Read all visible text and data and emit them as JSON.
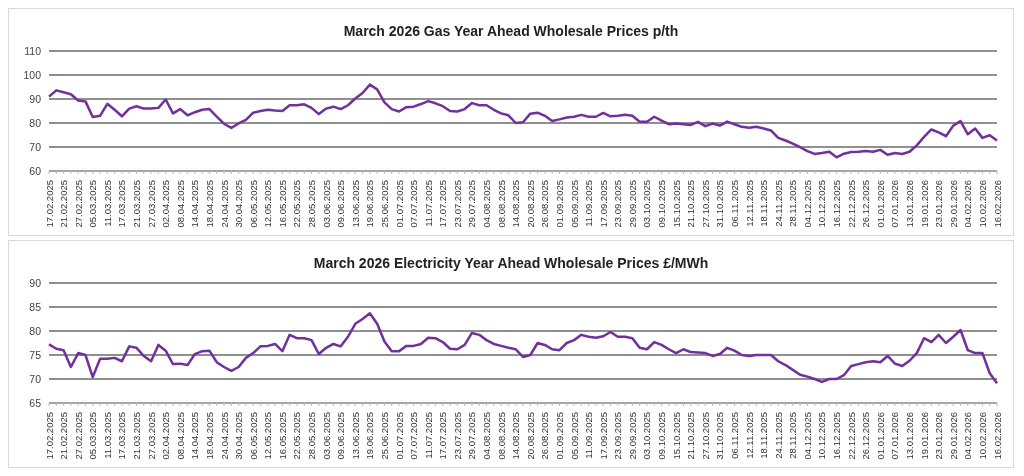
{
  "chart_data": [
    {
      "type": "line",
      "title": "March 2026 Gas Year Ahead Wholesale Prices p/th",
      "categories": [
        "17.02.2025",
        null,
        "21.02.2025",
        null,
        "27.02.2025",
        null,
        "05.03.2025",
        null,
        "11.03.2025",
        null,
        "17.03.2025",
        null,
        "21.03.2025",
        null,
        "27.03.2025",
        null,
        "02.04.2025",
        null,
        "08.04.2025",
        null,
        "14.04.2025",
        null,
        "18.04.2025",
        null,
        "24.04.2025",
        null,
        "30.04.2025",
        null,
        "06.05.2025",
        null,
        "12.05.2025",
        null,
        "16.05.2025",
        null,
        "22.05.2025",
        null,
        "28.05.2025",
        null,
        "03.06.2025",
        null,
        "09.06.2025",
        null,
        "13.06.2025",
        null,
        "19.06.2025",
        null,
        "25.06.2025",
        null,
        "01.07.2025",
        null,
        "07.07.2025",
        null,
        "11.07.2025",
        null,
        "17.07.2025",
        null,
        "23.07.2025",
        null,
        "29.07.2025",
        null,
        "04.08.2025",
        null,
        "08.08.2025",
        null,
        "14.08.2025",
        null,
        "20.08.2025",
        null,
        "26.08.2025",
        null,
        "01.09.2025",
        null,
        "05.09.2025",
        null,
        "11.09.2025",
        null,
        "17.09.2025",
        null,
        "23.09.2025",
        null,
        "29.09.2025",
        null,
        "03.10.2025",
        null,
        "09.10.2025",
        null,
        "15.10.2025",
        null,
        "21.10.2025",
        null,
        "27.10.2025",
        null,
        "31.10.2025",
        null,
        "06.11.2025",
        null,
        "12.11.2025",
        null,
        "18.11.2025",
        null,
        "24.11.2025",
        null,
        "28.11.2025",
        null,
        "04.12.2025",
        null,
        "10.12.2025",
        null,
        "16.12.2025",
        null,
        "22.12.2025",
        null,
        "26.12.2025",
        null,
        "01.01.2026",
        null,
        "07.01.2026",
        null,
        "13.01.2026",
        null,
        "19.01.2026",
        null,
        "23.01.2026",
        null,
        "29.01.2026",
        null,
        "04.02.2026",
        null,
        "10.02.2026",
        null,
        "16.02.2026"
      ],
      "series": [
        {
          "color": "#7030a0",
          "values": [
            91,
            93.6,
            92.8,
            92,
            89.4,
            89,
            82.5,
            83,
            88,
            85.5,
            82.8,
            86,
            87,
            86,
            86,
            86.3,
            89.8,
            84,
            85.8,
            83.2,
            84.5,
            85.5,
            85.8,
            82.7,
            79.7,
            78,
            79.8,
            81.3,
            84.3,
            85,
            85.5,
            85.2,
            85,
            87.4,
            87.4,
            87.8,
            86.3,
            83.7,
            86,
            86.8,
            85.8,
            87.4,
            90.2,
            92.5,
            96,
            94,
            88.6,
            85.8,
            84.8,
            86.6,
            86.8,
            87.9,
            89.1,
            88.2,
            87,
            85,
            84.8,
            85.8,
            88.3,
            87.4,
            87.4,
            85.5,
            84,
            83.2,
            80,
            80.3,
            83.9,
            84.3,
            83,
            80.8,
            81.5,
            82.3,
            82.6,
            83.4,
            82.6,
            82.6,
            84.2,
            82.8,
            83,
            83.4,
            83,
            80.5,
            80.5,
            82.6,
            81,
            79.5,
            79.8,
            79.5,
            79.2,
            80.5,
            78.7,
            79.8,
            78.9,
            80.6,
            79.5,
            78.4,
            78,
            78.4,
            77.7,
            76.9,
            73.8,
            72.7,
            71.4,
            69.9,
            68.3,
            67.1,
            67.5,
            68,
            65.7,
            67.2,
            67.9,
            68,
            68.3,
            68,
            68.8,
            66.8,
            67.5,
            67.1,
            68,
            70.7,
            74.2,
            77.3,
            76.1,
            74.5,
            78.9,
            80.8,
            75.3,
            77.7,
            73.8,
            74.9,
            72.7
          ]
        }
      ],
      "ylim": [
        60,
        110
      ],
      "yticks": [
        60,
        70,
        80,
        90,
        100,
        110
      ],
      "grid": "y"
    },
    {
      "type": "line",
      "title": "March 2026 Electricity Year Ahead Wholesale Prices £/MWh",
      "categories": [
        "17.02.2025",
        null,
        "21.02.2025",
        null,
        "27.02.2025",
        null,
        "05.03.2025",
        null,
        "11.03.2025",
        null,
        "17.03.2025",
        null,
        "21.03.2025",
        null,
        "27.03.2025",
        null,
        "02.04.2025",
        null,
        "08.04.2025",
        null,
        "14.04.2025",
        null,
        "18.04.2025",
        null,
        "24.04.2025",
        null,
        "30.04.2025",
        null,
        "06.05.2025",
        null,
        "12.05.2025",
        null,
        "16.05.2025",
        null,
        "22.05.2025",
        null,
        "28.05.2025",
        null,
        "03.06.2025",
        null,
        "09.06.2025",
        null,
        "13.06.2025",
        null,
        "19.06.2025",
        null,
        "25.06.2025",
        null,
        "01.07.2025",
        null,
        "07.07.2025",
        null,
        "11.07.2025",
        null,
        "17.07.2025",
        null,
        "23.07.2025",
        null,
        "29.07.2025",
        null,
        "04.08.2025",
        null,
        "08.08.2025",
        null,
        "14.08.2025",
        null,
        "20.08.2025",
        null,
        "26.08.2025",
        null,
        "01.09.2025",
        null,
        "05.09.2025",
        null,
        "11.09.2025",
        null,
        "17.09.2025",
        null,
        "23.09.2025",
        null,
        "29.09.2025",
        null,
        "03.10.2025",
        null,
        "09.10.2025",
        null,
        "15.10.2025",
        null,
        "21.10.2025",
        null,
        "27.10.2025",
        null,
        "31.10.2025",
        null,
        "06.11.2025",
        null,
        "12.11.2025",
        null,
        "18.11.2025",
        null,
        "24.11.2025",
        null,
        "28.11.2025",
        null,
        "04.12.2025",
        null,
        "10.12.2025",
        null,
        "16.12.2025",
        null,
        "22.12.2025",
        null,
        "26.12.2025",
        null,
        "01.01.2026",
        null,
        "07.01.2026",
        null,
        "13.01.2026",
        null,
        "19.01.2026",
        null,
        "23.01.2026",
        null,
        "29.01.2026",
        null,
        "04.02.2026",
        null,
        "10.02.2026",
        null,
        "16.02.2026"
      ],
      "series": [
        {
          "color": "#7030a0",
          "values": [
            77.2,
            76.3,
            76,
            72.5,
            75.4,
            75,
            70.4,
            74.2,
            74.2,
            74.4,
            73.7,
            76.8,
            76.5,
            74.8,
            73.7,
            77.1,
            75.9,
            73.1,
            73.2,
            72.9,
            75.2,
            75.8,
            75.9,
            73.5,
            72.5,
            71.7,
            72.5,
            74.4,
            75.4,
            76.8,
            76.9,
            77.3,
            75.8,
            79.2,
            78.5,
            78.5,
            78.1,
            75.2,
            76.5,
            77.3,
            76.8,
            78.8,
            81.5,
            82.5,
            83.7,
            81.5,
            77.8,
            75.8,
            75.8,
            76.9,
            76.9,
            77.3,
            78.6,
            78.5,
            77.7,
            76.3,
            76.2,
            77.1,
            79.6,
            79.2,
            78.1,
            77.3,
            76.9,
            76.5,
            76.2,
            74.6,
            75,
            77.5,
            77.1,
            76.2,
            76,
            77.5,
            78.1,
            79.2,
            78.8,
            78.6,
            78.9,
            79.8,
            78.8,
            78.8,
            78.5,
            76.5,
            76.2,
            77.7,
            77.1,
            76.2,
            75.4,
            76.2,
            75.6,
            75.5,
            75.4,
            74.8,
            75.2,
            76.5,
            75.9,
            75,
            74.8,
            75,
            75,
            75,
            73.7,
            72.9,
            71.9,
            70.9,
            70.5,
            70,
            69.4,
            70,
            70,
            70.8,
            72.7,
            73.1,
            73.5,
            73.7,
            73.5,
            74.8,
            73.2,
            72.7,
            73.8,
            75.4,
            78.5,
            77.7,
            79.2,
            77.5,
            78.8,
            80.2,
            76,
            75.4,
            75.4,
            71.2,
            69.1
          ]
        }
      ],
      "ylim": [
        65,
        90
      ],
      "yticks": [
        65,
        70,
        75,
        80,
        85,
        90
      ],
      "grid": "y"
    }
  ]
}
